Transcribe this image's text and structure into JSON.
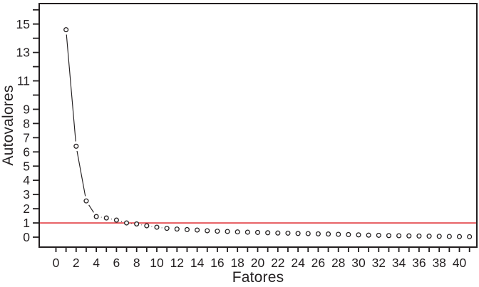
{
  "figure": {
    "background": "#ffffff",
    "ink_color": "#231f20"
  },
  "chart_data": {
    "type": "line",
    "title": "",
    "xlabel": "Fatores",
    "ylabel": "Autovalores",
    "xlim": [
      -1.7,
      41.8
    ],
    "ylim": [
      -0.7,
      16.4
    ],
    "grid": false,
    "legend": "none",
    "marker": "open-circle",
    "series": [
      {
        "name": "Autovalores",
        "x": [
          1,
          2,
          3,
          4,
          5,
          6,
          7,
          8,
          9,
          10,
          11,
          12,
          13,
          14,
          15,
          16,
          17,
          18,
          19,
          20,
          21,
          22,
          23,
          24,
          25,
          26,
          27,
          28,
          29,
          30,
          31,
          32,
          33,
          34,
          35,
          36,
          37,
          38,
          39,
          40,
          41
        ],
        "values": [
          14.6,
          6.4,
          2.55,
          1.45,
          1.35,
          1.2,
          1.0,
          0.93,
          0.8,
          0.7,
          0.62,
          0.57,
          0.53,
          0.5,
          0.45,
          0.42,
          0.4,
          0.37,
          0.35,
          0.33,
          0.31,
          0.29,
          0.28,
          0.26,
          0.25,
          0.23,
          0.22,
          0.2,
          0.18,
          0.16,
          0.14,
          0.13,
          0.11,
          0.1,
          0.09,
          0.08,
          0.07,
          0.06,
          0.05,
          0.04,
          0.03
        ]
      }
    ],
    "x_ticks": {
      "from": 0,
      "to": 41,
      "step": 1,
      "labeled": [
        0,
        2,
        4,
        6,
        8,
        10,
        12,
        14,
        16,
        18,
        20,
        22,
        24,
        26,
        28,
        30,
        32,
        34,
        36,
        38,
        40
      ]
    },
    "y_ticks": {
      "from": 0,
      "to": 16,
      "step": 1,
      "labeled": [
        0,
        1,
        2,
        3,
        4,
        5,
        6,
        7,
        8,
        9,
        11,
        13,
        15
      ]
    },
    "reference_line": {
      "y": 1,
      "color": "#e23b40"
    },
    "colors": {
      "line": "#231f20",
      "marker_stroke": "#231f20",
      "marker_fill": "#ffffff",
      "reference": "#e23b40"
    }
  }
}
